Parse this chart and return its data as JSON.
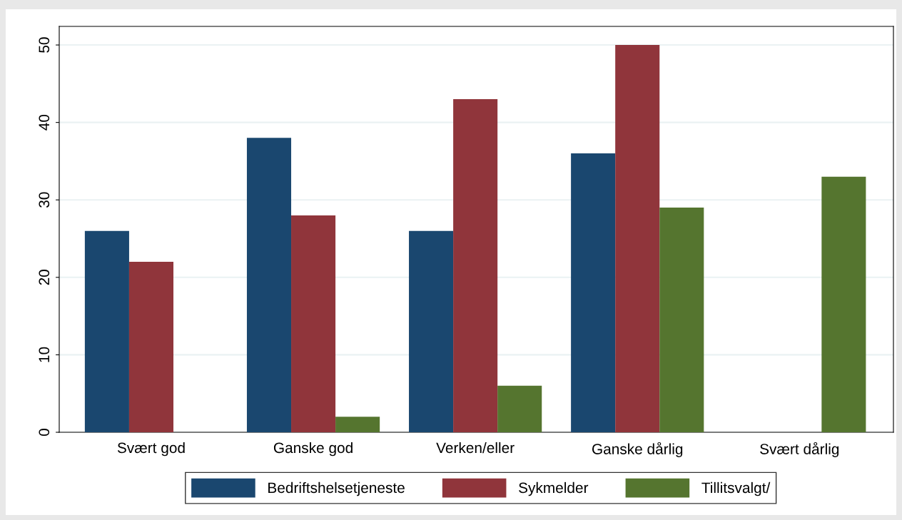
{
  "chart_data": {
    "type": "bar",
    "categories": [
      "Svært god",
      "Ganske god",
      "Verken/eller",
      "Ganske dårlig",
      "Svært dårlig"
    ],
    "series": [
      {
        "name": "Bedriftshelsetjeneste",
        "color": "#1a476f",
        "values": [
          26,
          38,
          26,
          36,
          null
        ]
      },
      {
        "name": "Sykmelder",
        "color": "#90353b",
        "values": [
          22,
          28,
          43,
          50,
          null
        ]
      },
      {
        "name": "Tillitsvalgt/",
        "color": "#55752f",
        "values": [
          null,
          2,
          6,
          29,
          33
        ]
      }
    ],
    "ylim": [
      0,
      52.4
    ],
    "yticks": [
      0,
      10,
      20,
      30,
      40,
      50
    ],
    "grid": "y",
    "legend": "bottom"
  }
}
